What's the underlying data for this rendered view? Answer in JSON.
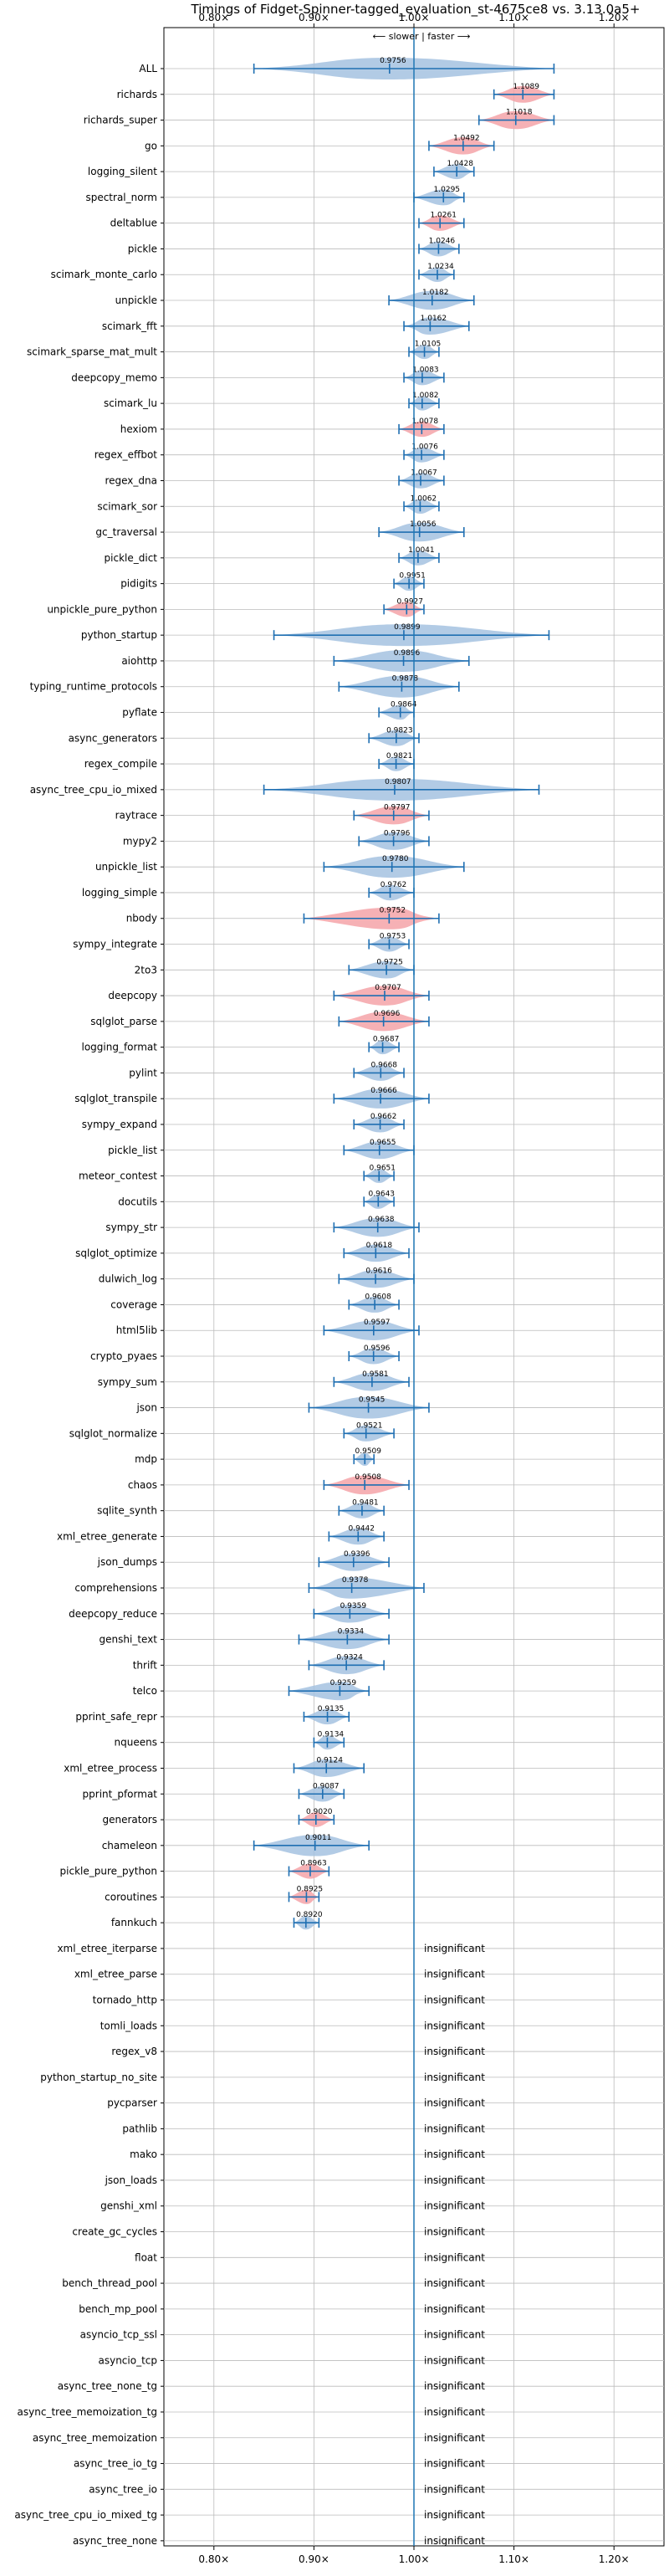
{
  "chart_data": {
    "type": "violin",
    "title": "Timings of Fidget-Spinner-tagged_evaluation_st-4675ce8 vs. 3.13.0a5+",
    "direction_label": "⟵ slower | faster ⟶",
    "x_ticks": [
      "0.80×",
      "0.90×",
      "1.00×",
      "1.10×",
      "1.20×"
    ],
    "x_tick_values": [
      0.8,
      0.9,
      1.0,
      1.1,
      1.2
    ],
    "xlim": [
      0.75,
      1.25
    ],
    "reference_line": 1.0,
    "insignificant_label": "insignificant",
    "colors": {
      "faster": "#a4c2e0",
      "slower": "#f4a3a8",
      "error_bar": "#1f6fb2",
      "reference": "#1f77b4",
      "grid": "#bbbbbb"
    },
    "benchmarks": [
      {
        "name": "ALL",
        "value": 0.9756,
        "label": "0.9756",
        "ci": [
          0.84,
          1.14
        ],
        "color": "faster"
      },
      {
        "name": "richards",
        "value": 1.1089,
        "label": "1.1089",
        "ci": [
          1.08,
          1.14
        ],
        "color": "slower"
      },
      {
        "name": "richards_super",
        "value": 1.1018,
        "label": "1.1018",
        "ci": [
          1.065,
          1.14
        ],
        "color": "slower"
      },
      {
        "name": "go",
        "value": 1.0492,
        "label": "1.0492",
        "ci": [
          1.015,
          1.08
        ],
        "color": "slower"
      },
      {
        "name": "logging_silent",
        "value": 1.0428,
        "label": "1.0428",
        "ci": [
          1.02,
          1.06
        ],
        "color": "faster"
      },
      {
        "name": "spectral_norm",
        "value": 1.0295,
        "label": "1.0295",
        "ci": [
          1.0,
          1.05
        ],
        "color": "faster"
      },
      {
        "name": "deltablue",
        "value": 1.0261,
        "label": "1.0261",
        "ci": [
          1.005,
          1.05
        ],
        "color": "slower"
      },
      {
        "name": "pickle",
        "value": 1.0246,
        "label": "1.0246",
        "ci": [
          1.005,
          1.045
        ],
        "color": "faster"
      },
      {
        "name": "scimark_monte_carlo",
        "value": 1.0234,
        "label": "1.0234",
        "ci": [
          1.005,
          1.04
        ],
        "color": "faster"
      },
      {
        "name": "unpickle",
        "value": 1.0182,
        "label": "1.0182",
        "ci": [
          0.975,
          1.06
        ],
        "color": "faster"
      },
      {
        "name": "scimark_fft",
        "value": 1.0162,
        "label": "1.0162",
        "ci": [
          0.99,
          1.055
        ],
        "color": "faster"
      },
      {
        "name": "scimark_sparse_mat_mult",
        "value": 1.0105,
        "label": "1.0105",
        "ci": [
          0.995,
          1.025
        ],
        "color": "faster"
      },
      {
        "name": "deepcopy_memo",
        "value": 1.0083,
        "label": "1.0083",
        "ci": [
          0.99,
          1.03
        ],
        "color": "faster"
      },
      {
        "name": "scimark_lu",
        "value": 1.0082,
        "label": "1.0082",
        "ci": [
          0.995,
          1.025
        ],
        "color": "faster"
      },
      {
        "name": "hexiom",
        "value": 1.0078,
        "label": "1.0078",
        "ci": [
          0.985,
          1.03
        ],
        "color": "slower"
      },
      {
        "name": "regex_effbot",
        "value": 1.0076,
        "label": "1.0076",
        "ci": [
          0.99,
          1.03
        ],
        "color": "faster"
      },
      {
        "name": "regex_dna",
        "value": 1.0067,
        "label": "1.0067",
        "ci": [
          0.985,
          1.03
        ],
        "color": "faster"
      },
      {
        "name": "scimark_sor",
        "value": 1.0062,
        "label": "1.0062",
        "ci": [
          0.99,
          1.025
        ],
        "color": "faster"
      },
      {
        "name": "gc_traversal",
        "value": 1.0056,
        "label": "1.0056",
        "ci": [
          0.965,
          1.05
        ],
        "color": "faster"
      },
      {
        "name": "pickle_dict",
        "value": 1.0041,
        "label": "1.0041",
        "ci": [
          0.985,
          1.025
        ],
        "color": "faster"
      },
      {
        "name": "pidigits",
        "value": 0.9951,
        "label": "0.9951",
        "ci": [
          0.98,
          1.01
        ],
        "color": "faster"
      },
      {
        "name": "unpickle_pure_python",
        "value": 0.9927,
        "label": "0.9927",
        "ci": [
          0.97,
          1.01
        ],
        "color": "slower"
      },
      {
        "name": "python_startup",
        "value": 0.9899,
        "label": "0.9899",
        "ci": [
          0.86,
          1.135
        ],
        "color": "faster"
      },
      {
        "name": "aiohttp",
        "value": 0.9896,
        "label": "0.9896",
        "ci": [
          0.92,
          1.055
        ],
        "color": "faster"
      },
      {
        "name": "typing_runtime_protocols",
        "value": 0.9878,
        "label": "0.9878",
        "ci": [
          0.925,
          1.045
        ],
        "color": "faster"
      },
      {
        "name": "pyflate",
        "value": 0.9864,
        "label": "0.9864",
        "ci": [
          0.965,
          1.0
        ],
        "color": "faster"
      },
      {
        "name": "async_generators",
        "value": 0.9823,
        "label": "0.9823",
        "ci": [
          0.955,
          1.005
        ],
        "color": "faster"
      },
      {
        "name": "regex_compile",
        "value": 0.9821,
        "label": "0.9821",
        "ci": [
          0.965,
          1.0
        ],
        "color": "faster"
      },
      {
        "name": "async_tree_cpu_io_mixed",
        "value": 0.9807,
        "label": "0.9807",
        "ci": [
          0.85,
          1.125
        ],
        "color": "faster"
      },
      {
        "name": "raytrace",
        "value": 0.9797,
        "label": "0.9797",
        "ci": [
          0.94,
          1.015
        ],
        "color": "slower"
      },
      {
        "name": "mypy2",
        "value": 0.9796,
        "label": "0.9796",
        "ci": [
          0.945,
          1.015
        ],
        "color": "faster"
      },
      {
        "name": "unpickle_list",
        "value": 0.978,
        "label": "0.9780",
        "ci": [
          0.91,
          1.05
        ],
        "color": "faster"
      },
      {
        "name": "logging_simple",
        "value": 0.9762,
        "label": "0.9762",
        "ci": [
          0.955,
          1.0
        ],
        "color": "faster"
      },
      {
        "name": "nbody",
        "value": 0.9752,
        "label": "0.9752",
        "ci": [
          0.89,
          1.025
        ],
        "color": "slower"
      },
      {
        "name": "sympy_integrate",
        "value": 0.9753,
        "label": "0.9753",
        "ci": [
          0.955,
          0.995
        ],
        "color": "faster"
      },
      {
        "name": "2to3",
        "value": 0.9725,
        "label": "0.9725",
        "ci": [
          0.935,
          1.0
        ],
        "color": "faster"
      },
      {
        "name": "deepcopy",
        "value": 0.9707,
        "label": "0.9707",
        "ci": [
          0.92,
          1.015
        ],
        "color": "slower"
      },
      {
        "name": "sqlglot_parse",
        "value": 0.9696,
        "label": "0.9696",
        "ci": [
          0.925,
          1.015
        ],
        "color": "slower"
      },
      {
        "name": "logging_format",
        "value": 0.9687,
        "label": "0.9687",
        "ci": [
          0.955,
          0.985
        ],
        "color": "faster"
      },
      {
        "name": "pylint",
        "value": 0.9668,
        "label": "0.9668",
        "ci": [
          0.94,
          0.99
        ],
        "color": "faster"
      },
      {
        "name": "sqlglot_transpile",
        "value": 0.9666,
        "label": "0.9666",
        "ci": [
          0.92,
          1.015
        ],
        "color": "faster"
      },
      {
        "name": "sympy_expand",
        "value": 0.9662,
        "label": "0.9662",
        "ci": [
          0.94,
          0.99
        ],
        "color": "faster"
      },
      {
        "name": "pickle_list",
        "value": 0.9655,
        "label": "0.9655",
        "ci": [
          0.93,
          1.0
        ],
        "color": "faster"
      },
      {
        "name": "meteor_contest",
        "value": 0.9651,
        "label": "0.9651",
        "ci": [
          0.95,
          0.98
        ],
        "color": "faster"
      },
      {
        "name": "docutils",
        "value": 0.9643,
        "label": "0.9643",
        "ci": [
          0.95,
          0.98
        ],
        "color": "faster"
      },
      {
        "name": "sympy_str",
        "value": 0.9638,
        "label": "0.9638",
        "ci": [
          0.92,
          1.005
        ],
        "color": "faster"
      },
      {
        "name": "sqlglot_optimize",
        "value": 0.9618,
        "label": "0.9618",
        "ci": [
          0.93,
          0.995
        ],
        "color": "faster"
      },
      {
        "name": "dulwich_log",
        "value": 0.9616,
        "label": "0.9616",
        "ci": [
          0.925,
          1.0
        ],
        "color": "faster"
      },
      {
        "name": "coverage",
        "value": 0.9608,
        "label": "0.9608",
        "ci": [
          0.935,
          0.985
        ],
        "color": "faster"
      },
      {
        "name": "html5lib",
        "value": 0.9597,
        "label": "0.9597",
        "ci": [
          0.91,
          1.005
        ],
        "color": "faster"
      },
      {
        "name": "crypto_pyaes",
        "value": 0.9596,
        "label": "0.9596",
        "ci": [
          0.935,
          0.985
        ],
        "color": "faster"
      },
      {
        "name": "sympy_sum",
        "value": 0.9581,
        "label": "0.9581",
        "ci": [
          0.92,
          0.995
        ],
        "color": "faster"
      },
      {
        "name": "json",
        "value": 0.9545,
        "label": "0.9545",
        "ci": [
          0.895,
          1.015
        ],
        "color": "faster"
      },
      {
        "name": "sqlglot_normalize",
        "value": 0.9521,
        "label": "0.9521",
        "ci": [
          0.93,
          0.98
        ],
        "color": "faster"
      },
      {
        "name": "mdp",
        "value": 0.9509,
        "label": "0.9509",
        "ci": [
          0.94,
          0.96
        ],
        "color": "faster"
      },
      {
        "name": "chaos",
        "value": 0.9508,
        "label": "0.9508",
        "ci": [
          0.91,
          0.995
        ],
        "color": "slower"
      },
      {
        "name": "sqlite_synth",
        "value": 0.9481,
        "label": "0.9481",
        "ci": [
          0.925,
          0.97
        ],
        "color": "faster"
      },
      {
        "name": "xml_etree_generate",
        "value": 0.9442,
        "label": "0.9442",
        "ci": [
          0.915,
          0.97
        ],
        "color": "faster"
      },
      {
        "name": "json_dumps",
        "value": 0.9396,
        "label": "0.9396",
        "ci": [
          0.905,
          0.975
        ],
        "color": "faster"
      },
      {
        "name": "comprehensions",
        "value": 0.9378,
        "label": "0.9378",
        "ci": [
          0.895,
          1.01
        ],
        "color": "faster"
      },
      {
        "name": "deepcopy_reduce",
        "value": 0.9359,
        "label": "0.9359",
        "ci": [
          0.9,
          0.975
        ],
        "color": "faster"
      },
      {
        "name": "genshi_text",
        "value": 0.9334,
        "label": "0.9334",
        "ci": [
          0.885,
          0.975
        ],
        "color": "faster"
      },
      {
        "name": "thrift",
        "value": 0.9324,
        "label": "0.9324",
        "ci": [
          0.895,
          0.97
        ],
        "color": "faster"
      },
      {
        "name": "telco",
        "value": 0.9259,
        "label": "0.9259",
        "ci": [
          0.875,
          0.955
        ],
        "color": "faster"
      },
      {
        "name": "pprint_safe_repr",
        "value": 0.9135,
        "label": "0.9135",
        "ci": [
          0.89,
          0.935
        ],
        "color": "faster"
      },
      {
        "name": "nqueens",
        "value": 0.9134,
        "label": "0.9134",
        "ci": [
          0.9,
          0.93
        ],
        "color": "faster"
      },
      {
        "name": "xml_etree_process",
        "value": 0.9124,
        "label": "0.9124",
        "ci": [
          0.88,
          0.95
        ],
        "color": "faster"
      },
      {
        "name": "pprint_pformat",
        "value": 0.9087,
        "label": "0.9087",
        "ci": [
          0.885,
          0.93
        ],
        "color": "faster"
      },
      {
        "name": "generators",
        "value": 0.902,
        "label": "0.9020",
        "ci": [
          0.885,
          0.92
        ],
        "color": "slower"
      },
      {
        "name": "chameleon",
        "value": 0.9011,
        "label": "0.9011",
        "ci": [
          0.84,
          0.955
        ],
        "color": "faster"
      },
      {
        "name": "pickle_pure_python",
        "value": 0.8963,
        "label": "0.8963",
        "ci": [
          0.875,
          0.915
        ],
        "color": "slower"
      },
      {
        "name": "coroutines",
        "value": 0.8925,
        "label": "0.8925",
        "ci": [
          0.875,
          0.905
        ],
        "color": "slower"
      },
      {
        "name": "fannkuch",
        "value": 0.892,
        "label": "0.8920",
        "ci": [
          0.88,
          0.905
        ],
        "color": "faster"
      }
    ],
    "insignificant_benchmarks": [
      "xml_etree_iterparse",
      "xml_etree_parse",
      "tornado_http",
      "tomli_loads",
      "regex_v8",
      "python_startup_no_site",
      "pycparser",
      "pathlib",
      "mako",
      "json_loads",
      "genshi_xml",
      "create_gc_cycles",
      "float",
      "bench_thread_pool",
      "bench_mp_pool",
      "asyncio_tcp_ssl",
      "asyncio_tcp",
      "async_tree_none_tg",
      "async_tree_memoization_tg",
      "async_tree_memoization",
      "async_tree_io_tg",
      "async_tree_io",
      "async_tree_cpu_io_mixed_tg",
      "async_tree_none"
    ]
  }
}
